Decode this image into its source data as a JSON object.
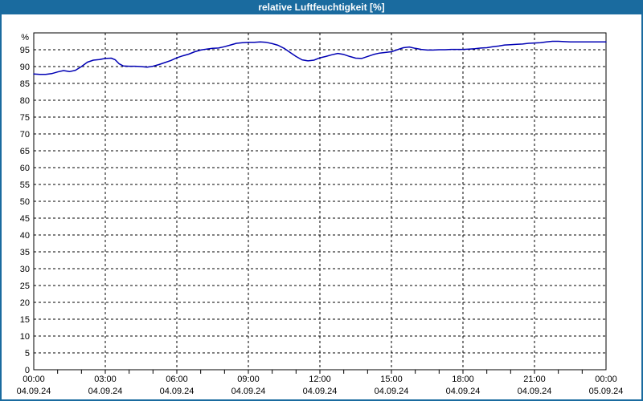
{
  "window": {
    "title": "relative Luftfeuchtigkeit [%]"
  },
  "colors": {
    "titlebar_bg": "#1a6b9f",
    "titlebar_text": "#ffffff",
    "outer_border": "#1a6b9f",
    "plot_bg": "#ffffff",
    "frame": "#000000",
    "grid": "#000000",
    "axis_text": "#000000",
    "line": "#0000b4"
  },
  "chart_data": {
    "type": "line",
    "title": "relative Luftfeuchtigkeit [%]",
    "ylabel": "%",
    "ylim": [
      0,
      100
    ],
    "ytick_values": [
      0,
      5,
      10,
      15,
      20,
      25,
      30,
      35,
      40,
      45,
      50,
      55,
      60,
      65,
      70,
      75,
      80,
      85,
      90,
      95
    ],
    "x_range_hours": [
      0,
      24
    ],
    "x_major_step_hours": 3,
    "x_minor_step_hours": 1,
    "grid": "dashed",
    "legend": "none",
    "x_major_ticks": [
      {
        "time": "00:00",
        "date": "04.09.24"
      },
      {
        "time": "03:00",
        "date": "04.09.24"
      },
      {
        "time": "06:00",
        "date": "04.09.24"
      },
      {
        "time": "09:00",
        "date": "04.09.24"
      },
      {
        "time": "12:00",
        "date": "04.09.24"
      },
      {
        "time": "15:00",
        "date": "04.09.24"
      },
      {
        "time": "18:00",
        "date": "04.09.24"
      },
      {
        "time": "21:00",
        "date": "04.09.24"
      },
      {
        "time": "00:00",
        "date": "05.09.24"
      }
    ],
    "series": [
      {
        "name": "relative Luftfeuchtigkeit [%]",
        "color": "#0000b4",
        "points": [
          [
            "00:00",
            87.8
          ],
          [
            "00:15",
            87.7
          ],
          [
            "00:30",
            87.7
          ],
          [
            "00:45",
            87.9
          ],
          [
            "01:00",
            88.4
          ],
          [
            "01:15",
            88.8
          ],
          [
            "01:30",
            88.5
          ],
          [
            "01:45",
            88.9
          ],
          [
            "02:00",
            90.0
          ],
          [
            "02:15",
            91.3
          ],
          [
            "02:30",
            91.9
          ],
          [
            "02:45",
            92.1
          ],
          [
            "03:00",
            92.4
          ],
          [
            "03:15",
            92.5
          ],
          [
            "03:25",
            92.0
          ],
          [
            "03:35",
            90.8
          ],
          [
            "03:45",
            90.2
          ],
          [
            "04:00",
            90.1
          ],
          [
            "04:15",
            90.1
          ],
          [
            "04:30",
            90.0
          ],
          [
            "04:45",
            89.8
          ],
          [
            "05:00",
            90.1
          ],
          [
            "05:15",
            90.6
          ],
          [
            "05:30",
            91.2
          ],
          [
            "05:45",
            91.8
          ],
          [
            "06:00",
            92.6
          ],
          [
            "06:15",
            93.2
          ],
          [
            "06:30",
            93.7
          ],
          [
            "06:45",
            94.4
          ],
          [
            "07:00",
            94.9
          ],
          [
            "07:15",
            95.2
          ],
          [
            "07:30",
            95.4
          ],
          [
            "07:45",
            95.5
          ],
          [
            "08:00",
            95.9
          ],
          [
            "08:15",
            96.4
          ],
          [
            "08:30",
            96.9
          ],
          [
            "08:45",
            97.1
          ],
          [
            "09:00",
            97.2
          ],
          [
            "09:15",
            97.2
          ],
          [
            "09:30",
            97.3
          ],
          [
            "09:45",
            97.2
          ],
          [
            "10:00",
            96.8
          ],
          [
            "10:15",
            96.3
          ],
          [
            "10:30",
            95.4
          ],
          [
            "10:45",
            94.2
          ],
          [
            "11:00",
            93.0
          ],
          [
            "11:15",
            92.0
          ],
          [
            "11:30",
            91.7
          ],
          [
            "11:45",
            91.9
          ],
          [
            "12:00",
            92.6
          ],
          [
            "12:15",
            93.0
          ],
          [
            "12:30",
            93.5
          ],
          [
            "12:45",
            93.9
          ],
          [
            "13:00",
            93.6
          ],
          [
            "13:15",
            93.0
          ],
          [
            "13:30",
            92.5
          ],
          [
            "13:45",
            92.4
          ],
          [
            "14:00",
            93.0
          ],
          [
            "14:15",
            93.6
          ],
          [
            "14:30",
            94.0
          ],
          [
            "14:45",
            94.2
          ],
          [
            "15:00",
            94.4
          ],
          [
            "15:15",
            95.0
          ],
          [
            "15:30",
            95.6
          ],
          [
            "15:45",
            95.8
          ],
          [
            "16:00",
            95.4
          ],
          [
            "16:15",
            95.1
          ],
          [
            "16:30",
            94.9
          ],
          [
            "16:45",
            94.9
          ],
          [
            "17:00",
            95.0
          ],
          [
            "17:15",
            95.0
          ],
          [
            "17:30",
            95.1
          ],
          [
            "17:45",
            95.1
          ],
          [
            "18:00",
            95.1
          ],
          [
            "18:15",
            95.2
          ],
          [
            "18:30",
            95.3
          ],
          [
            "18:45",
            95.5
          ],
          [
            "19:00",
            95.6
          ],
          [
            "19:15",
            95.9
          ],
          [
            "19:30",
            96.1
          ],
          [
            "19:45",
            96.4
          ],
          [
            "20:00",
            96.5
          ],
          [
            "20:15",
            96.6
          ],
          [
            "20:30",
            96.7
          ],
          [
            "20:45",
            96.9
          ],
          [
            "21:00",
            97.0
          ],
          [
            "21:15",
            97.1
          ],
          [
            "21:30",
            97.3
          ],
          [
            "21:45",
            97.5
          ],
          [
            "22:00",
            97.5
          ],
          [
            "22:15",
            97.4
          ],
          [
            "22:30",
            97.3
          ],
          [
            "22:45",
            97.3
          ],
          [
            "23:00",
            97.3
          ],
          [
            "23:15",
            97.3
          ],
          [
            "23:30",
            97.3
          ],
          [
            "23:45",
            97.3
          ],
          [
            "24:00",
            97.3
          ]
        ]
      }
    ]
  }
}
